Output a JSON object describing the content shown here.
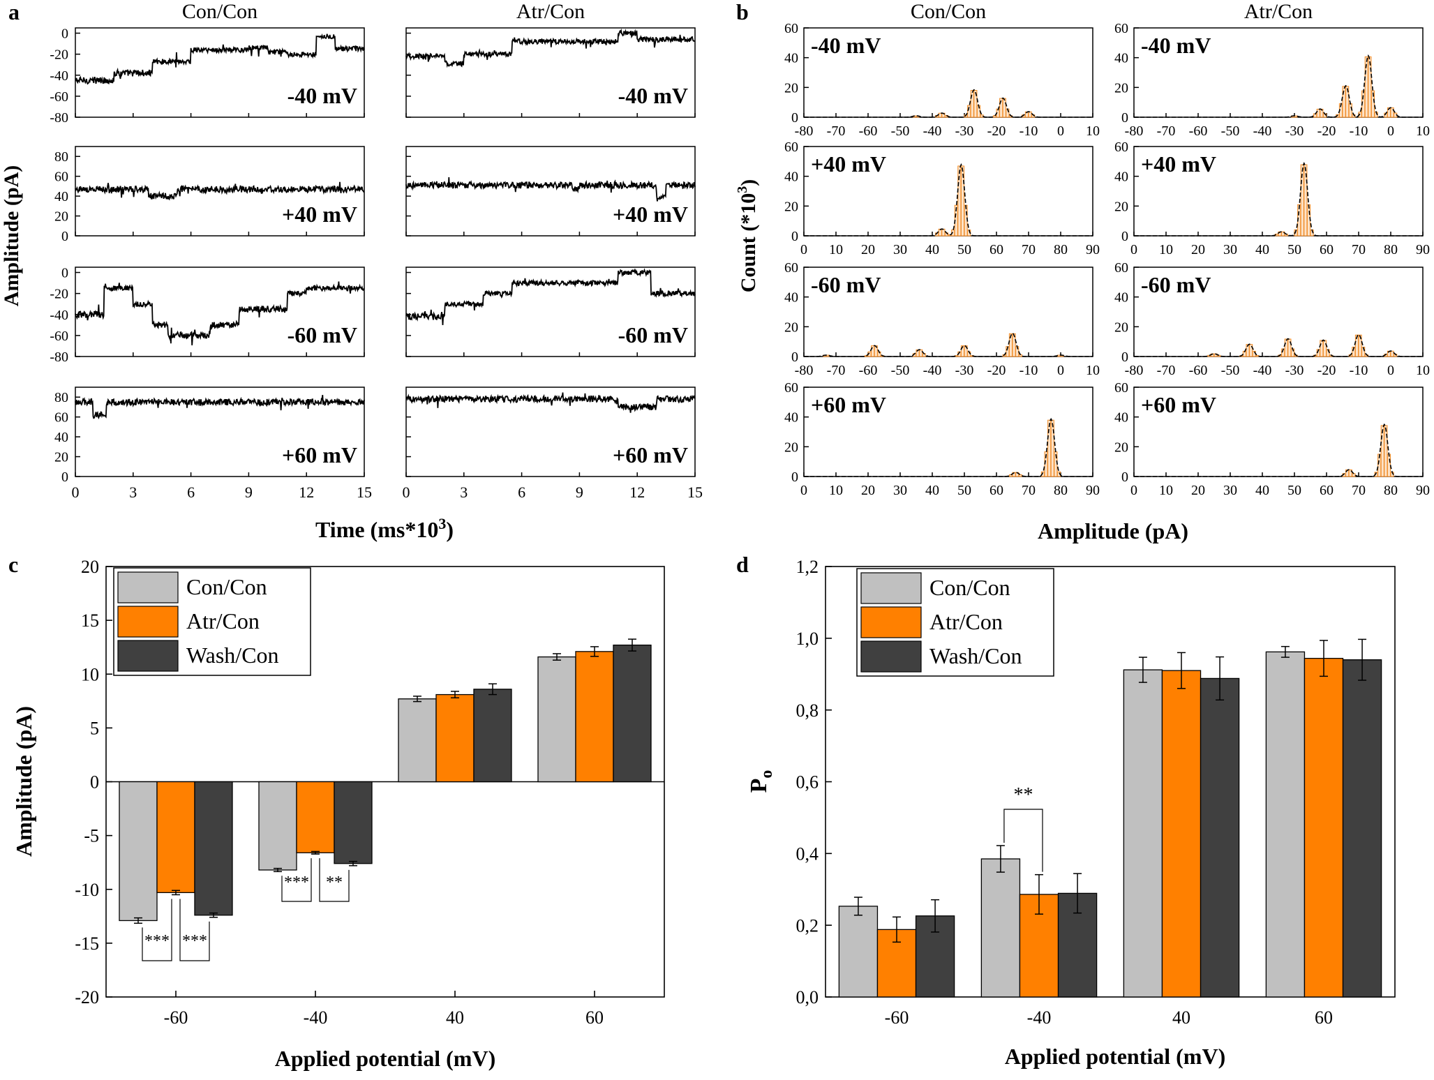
{
  "panel_labels": {
    "a": "a",
    "b": "b",
    "c": "c",
    "d": "d"
  },
  "colors": {
    "con": "#c0c0c0",
    "atr": "#ff8000",
    "wash": "#404040",
    "hist_fill": "#fde3c8",
    "hist_edge": "#f08a24",
    "trace": "#000000"
  },
  "panel_a": {
    "col_titles": [
      "Con/Con",
      "Atr/Con"
    ],
    "ylabel": "Amplitude (pA)",
    "xlabel_main": "Time (ms*10",
    "xlabel_sup": "3",
    "xlabel_end": ")",
    "xticks": [
      "0",
      "3",
      "6",
      "9",
      "12",
      "15"
    ],
    "rows": [
      {
        "voltage": "-40 mV",
        "yticks": [
          "0",
          "-20",
          "-40",
          "-60",
          "-80"
        ],
        "ylim": [
          -80,
          5
        ]
      },
      {
        "voltage": "+40 mV",
        "yticks": [
          "80",
          "60",
          "40",
          "20",
          "0"
        ],
        "ylim": [
          0,
          90
        ]
      },
      {
        "voltage": "-60 mV",
        "yticks": [
          "0",
          "-20",
          "-40",
          "-60",
          "-80"
        ],
        "ylim": [
          -80,
          5
        ]
      },
      {
        "voltage": "+60 mV",
        "yticks": [
          "80",
          "60",
          "40",
          "20",
          "0"
        ],
        "ylim": [
          0,
          90
        ]
      }
    ]
  },
  "panel_b": {
    "col_titles": [
      "Con/Con",
      "Atr/Con"
    ],
    "ylabel_main": "Count (*10",
    "ylabel_sup": "3",
    "ylabel_end": ")",
    "xlabel": "Amplitude (pA)",
    "yticks": [
      "60",
      "40",
      "20",
      "0"
    ],
    "xticks_neg": [
      "-80",
      "-70",
      "-60",
      "-50",
      "-40",
      "-30",
      "-20",
      "-10",
      "0",
      "10"
    ],
    "xticks_pos": [
      "0",
      "10",
      "20",
      "30",
      "40",
      "50",
      "60",
      "70",
      "80",
      "90"
    ],
    "rows": [
      {
        "voltage": "-40 mV",
        "xlim": [
          -80,
          10
        ]
      },
      {
        "voltage": "+40 mV",
        "xlim": [
          0,
          90
        ]
      },
      {
        "voltage": "-60 mV",
        "xlim": [
          -80,
          10
        ]
      },
      {
        "voltage": "+60 mV",
        "xlim": [
          0,
          90
        ]
      }
    ]
  },
  "chart_data": [
    {
      "type": "line",
      "panel": "a",
      "xlabel": "Time (ms*10^3)",
      "ylabel": "Amplitude (pA)",
      "xlim": [
        0,
        15
      ],
      "series": [
        {
          "name": "Con/Con -40 mV",
          "levels": [
            [
              0,
              -45
            ],
            [
              2,
              -38
            ],
            [
              4,
              -27
            ],
            [
              6,
              -16
            ],
            [
              9,
              -14
            ],
            [
              10,
              -18
            ],
            [
              11,
              -20
            ],
            [
              12.5,
              -3
            ],
            [
              13.5,
              -15
            ]
          ]
        },
        {
          "name": "Atr/Con -40 mV",
          "levels": [
            [
              0,
              -22
            ],
            [
              2,
              -29
            ],
            [
              3,
              -20
            ],
            [
              5.5,
              -8
            ],
            [
              8,
              -8
            ],
            [
              11,
              0
            ],
            [
              12,
              -6
            ]
          ]
        },
        {
          "name": "Con/Con +40 mV",
          "levels": [
            [
              0,
              47
            ],
            [
              3.8,
              40
            ],
            [
              5.3,
              47
            ]
          ]
        },
        {
          "name": "Atr/Con +40 mV",
          "levels": [
            [
              0,
              51
            ],
            [
              8.6,
              47
            ],
            [
              9,
              51
            ],
            [
              13,
              40
            ],
            [
              13.5,
              51
            ]
          ]
        },
        {
          "name": "Con/Con -60 mV",
          "levels": [
            [
              0,
              -40
            ],
            [
              1.5,
              -15
            ],
            [
              3,
              -30
            ],
            [
              4,
              -50
            ],
            [
              4.8,
              -60
            ],
            [
              7,
              -50
            ],
            [
              8.5,
              -35
            ],
            [
              11,
              -20
            ],
            [
              12,
              -15
            ]
          ]
        },
        {
          "name": "Atr/Con -60 mV",
          "levels": [
            [
              0,
              -42
            ],
            [
              2,
              -30
            ],
            [
              4,
              -20
            ],
            [
              5.5,
              -10
            ],
            [
              11,
              0
            ],
            [
              12.7,
              -20
            ]
          ]
        },
        {
          "name": "Con/Con +60 mV",
          "levels": [
            [
              0,
              75
            ],
            [
              0.9,
              62
            ],
            [
              1.6,
              75
            ]
          ]
        },
        {
          "name": "Atr/Con +60 mV",
          "levels": [
            [
              0,
              78
            ],
            [
              11,
              70
            ],
            [
              13,
              78
            ]
          ]
        }
      ]
    },
    {
      "type": "bar",
      "panel": "b",
      "xlabel": "Amplitude (pA)",
      "ylabel": "Count (*10^3)",
      "ylim": [
        0,
        60
      ],
      "series": [
        {
          "name": "Con/Con -40 mV",
          "peaks": [
            [
              -45,
              1
            ],
            [
              -37,
              3
            ],
            [
              -27,
              20
            ],
            [
              -18,
              14
            ],
            [
              -10,
              4
            ]
          ]
        },
        {
          "name": "Atr/Con -40 mV",
          "peaks": [
            [
              -30,
              1
            ],
            [
              -22,
              6
            ],
            [
              -14,
              23
            ],
            [
              -7,
              45
            ],
            [
              0,
              7
            ]
          ]
        },
        {
          "name": "Con/Con +40 mV",
          "peaks": [
            [
              43,
              5
            ],
            [
              49,
              52
            ]
          ]
        },
        {
          "name": "Atr/Con +40 mV",
          "peaks": [
            [
              46,
              3
            ],
            [
              53,
              53
            ]
          ]
        },
        {
          "name": "Con/Con -60 mV",
          "peaks": [
            [
              -73,
              1
            ],
            [
              -58,
              8
            ],
            [
              -44,
              5
            ],
            [
              -30,
              8
            ],
            [
              -15,
              17
            ],
            [
              0,
              1
            ]
          ]
        },
        {
          "name": "Atr/Con -60 mV",
          "peaks": [
            [
              -55,
              2
            ],
            [
              -44,
              9
            ],
            [
              -32,
              13
            ],
            [
              -21,
              12
            ],
            [
              -10,
              16
            ],
            [
              0,
              4
            ]
          ]
        },
        {
          "name": "Con/Con +60 mV",
          "peaks": [
            [
              66,
              3
            ],
            [
              77,
              42
            ]
          ]
        },
        {
          "name": "Atr/Con +60 mV",
          "peaks": [
            [
              67,
              5
            ],
            [
              78,
              38
            ]
          ]
        }
      ]
    },
    {
      "type": "bar",
      "panel": "c",
      "ylabel": "Amplitude (pA)",
      "xlabel": "Applied potential (mV)",
      "ylim": [
        -20,
        20
      ],
      "yticks": [
        "20",
        "15",
        "10",
        "5",
        "0",
        "-5",
        "-10",
        "-15",
        "-20"
      ],
      "categories": [
        "-60",
        "-40",
        "40",
        "60"
      ],
      "series": [
        {
          "name": "Con/Con",
          "values": [
            -12.9,
            -8.2,
            7.7,
            11.6
          ],
          "errors": [
            0.25,
            0.15,
            0.25,
            0.3
          ]
        },
        {
          "name": "Atr/Con",
          "values": [
            -10.3,
            -6.6,
            8.1,
            12.1
          ],
          "errors": [
            0.2,
            0.12,
            0.3,
            0.45
          ]
        },
        {
          "name": "Wash/Con",
          "values": [
            -12.4,
            -7.6,
            8.6,
            12.7
          ],
          "errors": [
            0.2,
            0.2,
            0.5,
            0.55
          ]
        }
      ],
      "significance": [
        {
          "label": "***",
          "category": 0,
          "pair": [
            0,
            1
          ]
        },
        {
          "label": "***",
          "category": 0,
          "pair": [
            1,
            2
          ]
        },
        {
          "label": "***",
          "category": 1,
          "pair": [
            0,
            1
          ]
        },
        {
          "label": "**",
          "category": 1,
          "pair": [
            1,
            2
          ]
        }
      ],
      "legend": "top-left"
    },
    {
      "type": "bar",
      "panel": "d",
      "ylabel": "P",
      "ylabel_sub": "o",
      "xlabel": "Applied potential (mV)",
      "ylim": [
        0,
        1.2
      ],
      "yticks": [
        "1,2",
        "1,0",
        "0,8",
        "0,6",
        "0,4",
        "0,2",
        "0,0"
      ],
      "categories": [
        "-60",
        "-40",
        "40",
        "60"
      ],
      "series": [
        {
          "name": "Con/Con",
          "values": [
            0.253,
            0.385,
            0.912,
            0.962
          ],
          "errors": [
            0.025,
            0.037,
            0.035,
            0.015
          ]
        },
        {
          "name": "Atr/Con",
          "values": [
            0.188,
            0.286,
            0.91,
            0.944
          ],
          "errors": [
            0.035,
            0.055,
            0.05,
            0.05
          ]
        },
        {
          "name": "Wash/Con",
          "values": [
            0.226,
            0.289,
            0.888,
            0.94
          ],
          "errors": [
            0.045,
            0.055,
            0.06,
            0.057
          ]
        }
      ],
      "significance": [
        {
          "label": "**",
          "category": 1,
          "pair": [
            0,
            1
          ]
        }
      ],
      "legend": "top-left"
    }
  ]
}
